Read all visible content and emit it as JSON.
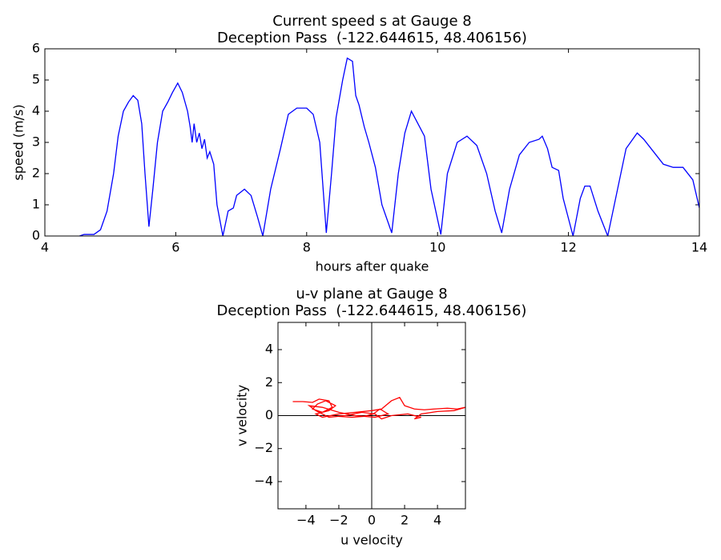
{
  "chart_data": [
    {
      "type": "line",
      "title": "Current speed s at Gauge 8",
      "subtitle": "Deception Pass  (-122.644615, 48.406156)",
      "x_label": "hours after quake",
      "y_label": "speed (m/s)",
      "xlim": [
        4,
        14
      ],
      "ylim": [
        0,
        6
      ],
      "xticks": [
        4,
        6,
        8,
        10,
        12,
        14
      ],
      "yticks": [
        0,
        1,
        2,
        3,
        4,
        5,
        6
      ],
      "series": [
        {
          "color": "#0000ff",
          "x": [
            4.53,
            4.6,
            4.75,
            4.85,
            4.95,
            5.05,
            5.12,
            5.2,
            5.28,
            5.35,
            5.42,
            5.48,
            5.53,
            5.59,
            5.65,
            5.72,
            5.8,
            5.88,
            5.95,
            6.03,
            6.1,
            6.18,
            6.22,
            6.25,
            6.28,
            6.32,
            6.36,
            6.4,
            6.44,
            6.48,
            6.52,
            6.58,
            6.63,
            6.72,
            6.8,
            6.88,
            6.93,
            7.05,
            7.15,
            7.25,
            7.33,
            7.45,
            7.6,
            7.72,
            7.85,
            8.0,
            8.1,
            8.2,
            8.3,
            8.38,
            8.45,
            8.55,
            8.62,
            8.7,
            8.75,
            8.8,
            8.88,
            8.95,
            9.05,
            9.15,
            9.3,
            9.4,
            9.5,
            9.6,
            9.7,
            9.8,
            9.9,
            10.05,
            10.15,
            10.3,
            10.45,
            10.6,
            10.75,
            10.88,
            10.98,
            11.1,
            11.25,
            11.4,
            11.55,
            11.6,
            11.68,
            11.75,
            11.85,
            11.92,
            12.07,
            12.18,
            12.25,
            12.33,
            12.45,
            12.6,
            12.75,
            12.88,
            13.05,
            13.15,
            13.3,
            13.45,
            13.6,
            13.75,
            13.9,
            14.0
          ],
          "values": [
            0,
            0.05,
            0.05,
            0.2,
            0.8,
            2.0,
            3.2,
            4.0,
            4.3,
            4.5,
            4.35,
            3.6,
            2.0,
            0.3,
            1.5,
            3.0,
            4.0,
            4.3,
            4.6,
            4.9,
            4.6,
            4.0,
            3.5,
            3.0,
            3.6,
            3.0,
            3.3,
            2.8,
            3.1,
            2.5,
            2.7,
            2.3,
            1.0,
            0,
            0.8,
            0.9,
            1.3,
            1.5,
            1.3,
            0.6,
            0,
            1.5,
            2.8,
            3.9,
            4.1,
            4.1,
            3.9,
            3.0,
            0.1,
            2.0,
            3.8,
            5.0,
            5.7,
            5.6,
            4.5,
            4.2,
            3.5,
            3.0,
            2.2,
            1.0,
            0.1,
            2.0,
            3.3,
            4.0,
            3.6,
            3.2,
            1.5,
            0.05,
            2.0,
            3.0,
            3.2,
            2.9,
            2.0,
            0.8,
            0.1,
            1.5,
            2.6,
            3.0,
            3.1,
            3.2,
            2.8,
            2.2,
            2.1,
            1.2,
            0,
            1.2,
            1.6,
            1.6,
            0.8,
            0,
            1.5,
            2.8,
            3.3,
            3.1,
            2.7,
            2.3,
            2.2,
            2.2,
            1.8,
            0.9
          ]
        }
      ]
    },
    {
      "type": "line",
      "title": "u-v plane at Gauge 8",
      "subtitle": "Deception Pass  (-122.644615, 48.406156)",
      "x_label": "u velocity",
      "y_label": "v velocity",
      "xlim": [
        -5.7,
        5.7
      ],
      "ylim": [
        -5.65,
        5.65
      ],
      "xticks": [
        {
          "value": -4,
          "label": "−4"
        },
        {
          "value": -2,
          "label": "−2"
        },
        0,
        2,
        4
      ],
      "yticks": [
        {
          "value": -4,
          "label": "−4"
        },
        {
          "value": -2,
          "label": "−2"
        },
        0,
        2,
        4
      ],
      "series": [
        {
          "color": "#ff0000",
          "x": [
            -4.8,
            -4.2,
            -3.6,
            -3.2,
            -2.6,
            -2.4,
            -3.0,
            -3.6,
            -3.3,
            -2.8,
            -2.2,
            -2.6,
            -3.4,
            -3.0,
            -2.0,
            -1.0,
            0.0,
            0.6,
            1.2,
            1.7,
            2.0,
            2.6,
            3.2,
            3.8,
            4.6,
            5.2,
            5.7,
            5.0,
            4.0,
            3.0,
            2.6,
            3.0,
            2.2,
            1.2,
            0.6,
            0.2,
            -0.6,
            -1.6,
            -2.6,
            -3.4,
            -3.8,
            -3.0,
            -2.0,
            -1.0,
            0.2,
            1.0,
            0.5,
            0.1,
            -0.5,
            -1.2,
            -2.0
          ],
          "values": [
            0.85,
            0.85,
            0.8,
            1.0,
            0.9,
            0.5,
            0.2,
            0.4,
            0.7,
            0.9,
            0.6,
            0.3,
            0.1,
            -0.1,
            0.1,
            0.2,
            0.3,
            0.4,
            0.9,
            1.1,
            0.6,
            0.4,
            0.35,
            0.4,
            0.45,
            0.4,
            0.5,
            0.3,
            0.25,
            0.1,
            -0.2,
            -0.1,
            0.1,
            0.0,
            -0.2,
            0.1,
            0.2,
            0.0,
            -0.1,
            0.3,
            0.6,
            0.5,
            0.2,
            0.0,
            -0.1,
            0.1,
            0.4,
            0.1,
            -0.05,
            -0.1,
            -0.05
          ]
        }
      ]
    }
  ]
}
